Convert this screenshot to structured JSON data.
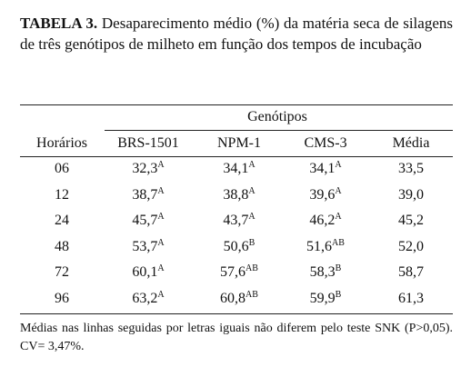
{
  "caption": {
    "label": "TABELA 3.",
    "text": "Desaparecimento médio (%) da matéria seca de silagens de três genótipos de milheto em função dos tempos de incubação"
  },
  "table": {
    "group_header": "Genótipos",
    "columns": [
      "Horários",
      "BRS-1501",
      "NPM-1",
      "CMS-3",
      "Média"
    ],
    "rows": [
      [
        {
          "text": "06"
        },
        {
          "text": "32,3",
          "sup": "A"
        },
        {
          "text": "34,1",
          "sup": "A"
        },
        {
          "text": "34,1",
          "sup": "A"
        },
        {
          "text": "33,5"
        }
      ],
      [
        {
          "text": "12"
        },
        {
          "text": "38,7",
          "sup": "A"
        },
        {
          "text": "38,8",
          "sup": "A"
        },
        {
          "text": "39,6",
          "sup": "A"
        },
        {
          "text": "39,0"
        }
      ],
      [
        {
          "text": "24"
        },
        {
          "text": "45,7",
          "sup": "A"
        },
        {
          "text": "43,7",
          "sup": "A"
        },
        {
          "text": "46,2",
          "sup": "A"
        },
        {
          "text": "45,2"
        }
      ],
      [
        {
          "text": "48"
        },
        {
          "text": "53,7",
          "sup": "A"
        },
        {
          "text": "50,6",
          "sup": "B"
        },
        {
          "text": "51,6",
          "sup": "AB"
        },
        {
          "text": "52,0"
        }
      ],
      [
        {
          "text": "72"
        },
        {
          "text": "60,1",
          "sup": "A"
        },
        {
          "text": "57,6",
          "sup": "AB"
        },
        {
          "text": "58,3",
          "sup": "B"
        },
        {
          "text": "58,7"
        }
      ],
      [
        {
          "text": "96"
        },
        {
          "text": "63,2",
          "sup": "A"
        },
        {
          "text": "60,8",
          "sup": "AB"
        },
        {
          "text": "59,9",
          "sup": "B"
        },
        {
          "text": "61,3"
        }
      ]
    ]
  },
  "footnote": "Médias nas linhas seguidas por letras iguais não diferem pelo teste SNK (P>0,05). CV= 3,47%."
}
